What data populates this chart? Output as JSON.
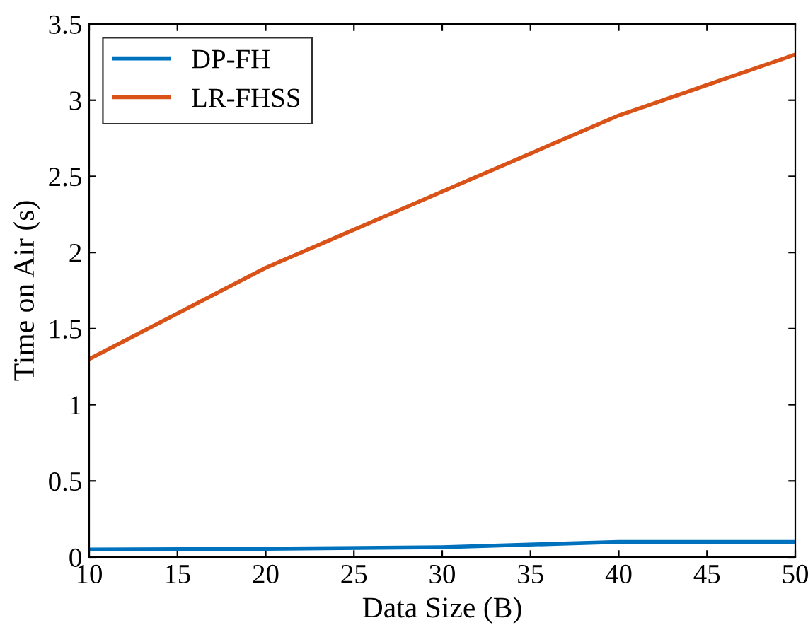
{
  "chart_data": {
    "type": "line",
    "xlabel": "Data Size (B)",
    "ylabel": "Time on Air (s)",
    "x": [
      10,
      20,
      30,
      40,
      50
    ],
    "series": [
      {
        "name": "DP-FH",
        "color": "#0072bd",
        "values": [
          0.05,
          0.055,
          0.065,
          0.1,
          0.1
        ]
      },
      {
        "name": "LR-FHSS",
        "color": "#d95319",
        "values": [
          1.3,
          1.9,
          2.4,
          2.9,
          3.3
        ]
      }
    ],
    "xlim": [
      10,
      50
    ],
    "xticks": [
      10,
      15,
      20,
      25,
      30,
      35,
      40,
      45,
      50
    ],
    "ylim": [
      0,
      3.5
    ],
    "yticks": [
      0,
      0.5,
      1,
      1.5,
      2,
      2.5,
      3,
      3.5
    ],
    "legend": "top left",
    "grid": false,
    "marker": "none",
    "line_style": "solid"
  }
}
